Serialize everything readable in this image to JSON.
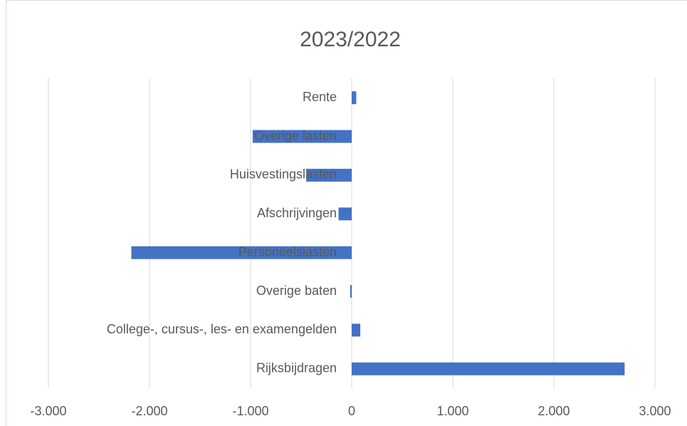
{
  "chart_data": {
    "type": "bar",
    "orientation": "horizontal",
    "title": "2023/2022",
    "categories": [
      "Rijksbijdragen",
      "College-, cursus-, les- en examengelden",
      "Overige baten",
      "Personeelslasten",
      "Afschrijvingen",
      "Huisvestingslasten",
      "Overige lasten",
      "Rente"
    ],
    "values": [
      2700,
      85,
      -15,
      -2180,
      -130,
      -450,
      -980,
      45
    ],
    "color": "#4472c4",
    "xlim": [
      -3000,
      3000
    ],
    "xticks": [
      {
        "value": -3000,
        "label": "-3.000"
      },
      {
        "value": -2000,
        "label": "-2.000"
      },
      {
        "value": -1000,
        "label": "-1.000"
      },
      0,
      {
        "value": 1000,
        "label": "1.000"
      },
      {
        "value": 2000,
        "label": "2.000"
      },
      {
        "value": 3000,
        "label": "3.000"
      }
    ],
    "grid": true
  }
}
